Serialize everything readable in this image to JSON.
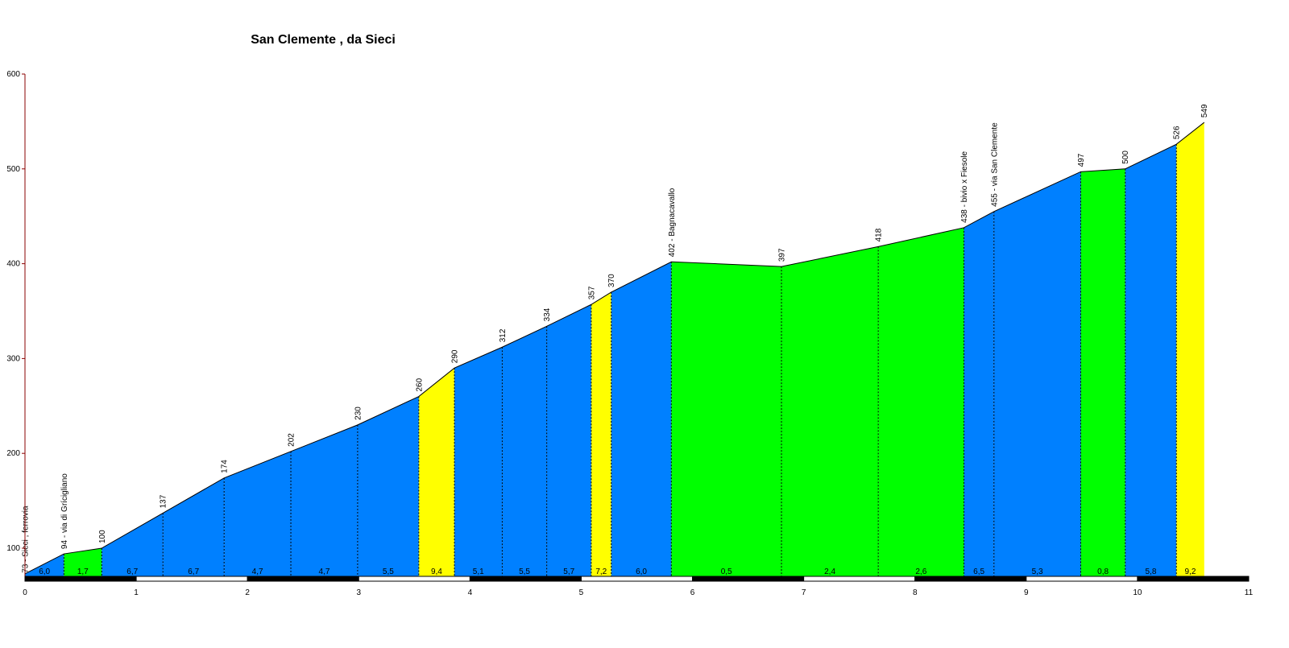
{
  "chart_data": {
    "type": "area",
    "title": "San Clemente , da Sieci",
    "xlabel": "",
    "ylabel": "",
    "xlim": [
      0,
      11
    ],
    "ylim": [
      69,
      600
    ],
    "y_ticks": [
      100,
      200,
      300,
      400,
      500,
      600
    ],
    "x_ticks": [
      0,
      1,
      2,
      3,
      4,
      5,
      6,
      7,
      8,
      9,
      10,
      11
    ],
    "points": [
      {
        "x": 0.0,
        "y": 73,
        "label": "73 - Sieci , ferrovia"
      },
      {
        "x": 0.35,
        "y": 94,
        "label": "94 - via di Grícigliano"
      },
      {
        "x": 0.69,
        "y": 100,
        "label": "100"
      },
      {
        "x": 1.24,
        "y": 137,
        "label": "137"
      },
      {
        "x": 1.79,
        "y": 174,
        "label": "174"
      },
      {
        "x": 2.39,
        "y": 202,
        "label": "202"
      },
      {
        "x": 2.99,
        "y": 230,
        "label": "230"
      },
      {
        "x": 3.54,
        "y": 260,
        "label": "260"
      },
      {
        "x": 3.86,
        "y": 290,
        "label": "290"
      },
      {
        "x": 4.29,
        "y": 312,
        "label": "312"
      },
      {
        "x": 4.69,
        "y": 334,
        "label": "334"
      },
      {
        "x": 5.09,
        "y": 357,
        "label": "357"
      },
      {
        "x": 5.27,
        "y": 370,
        "label": "370"
      },
      {
        "x": 5.81,
        "y": 402,
        "label": "402 - Bagnacavallo"
      },
      {
        "x": 6.8,
        "y": 397,
        "label": "397"
      },
      {
        "x": 7.67,
        "y": 418,
        "label": "418"
      },
      {
        "x": 8.44,
        "y": 438,
        "label": "438 - bivio x Fiesole"
      },
      {
        "x": 8.71,
        "y": 455,
        "label": "455 - via San Clemente"
      },
      {
        "x": 9.49,
        "y": 497,
        "label": "497"
      },
      {
        "x": 9.89,
        "y": 500,
        "label": "500"
      },
      {
        "x": 10.35,
        "y": 526,
        "label": "526"
      },
      {
        "x": 10.6,
        "y": 549,
        "label": "549"
      }
    ],
    "segments": [
      {
        "gradient": "6,0",
        "color": "#0080FF"
      },
      {
        "gradient": "1,7",
        "color": "#00FF00"
      },
      {
        "gradient": "6,7",
        "color": "#0080FF"
      },
      {
        "gradient": "6,7",
        "color": "#0080FF"
      },
      {
        "gradient": "4,7",
        "color": "#0080FF"
      },
      {
        "gradient": "4,7",
        "color": "#0080FF"
      },
      {
        "gradient": "5,5",
        "color": "#0080FF"
      },
      {
        "gradient": "9,4",
        "color": "#FFFF00"
      },
      {
        "gradient": "5,1",
        "color": "#0080FF"
      },
      {
        "gradient": "5,5",
        "color": "#0080FF"
      },
      {
        "gradient": "5,7",
        "color": "#0080FF"
      },
      {
        "gradient": "7,2",
        "color": "#FFFF00"
      },
      {
        "gradient": "6,0",
        "color": "#0080FF"
      },
      {
        "gradient": "0,5",
        "color": "#00FF00"
      },
      {
        "gradient": "2,4",
        "color": "#00FF00"
      },
      {
        "gradient": "2,6",
        "color": "#00FF00"
      },
      {
        "gradient": "6,5",
        "color": "#0080FF"
      },
      {
        "gradient": "5,3",
        "color": "#0080FF"
      },
      {
        "gradient": "0,8",
        "color": "#00FF00"
      },
      {
        "gradient": "5,8",
        "color": "#0080FF"
      },
      {
        "gradient": "9,2",
        "color": "#FFFF00"
      }
    ],
    "grid": false,
    "colors": {
      "axis": "#8B0000",
      "line": "#000000",
      "divider": "#000000"
    }
  }
}
